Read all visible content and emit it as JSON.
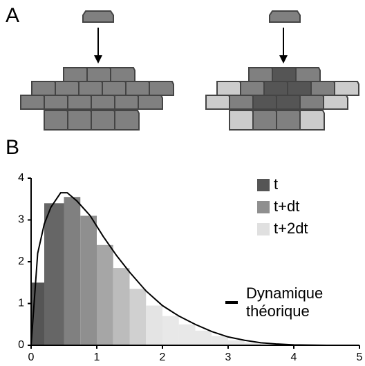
{
  "panels": {
    "a_label": "A",
    "b_label": "B"
  },
  "chart_data": {
    "type": "histogram",
    "bins": [
      0,
      0.2,
      0.5,
      0.75,
      1,
      1.25,
      1.5,
      1.75,
      2,
      2.25,
      2.5,
      2.75,
      3,
      3.25,
      3.5
    ],
    "counts": [
      1.5,
      3.4,
      3.55,
      3.1,
      2.4,
      1.85,
      1.35,
      0.95,
      0.7,
      0.5,
      0.35,
      0.22,
      0.12,
      0.06
    ],
    "bar_colors": [
      "#555555",
      "#666666",
      "#808080",
      "#8f8f8f",
      "#a6a6a6",
      "#bcbcbc",
      "#d0d0d0",
      "#e4e4e4",
      "#e8e8e8",
      "#e8e8e8",
      "#e8e8e8",
      "#e8e8e8",
      "#e8e8e8",
      "#e8e8e8"
    ],
    "legend": [
      {
        "name": "t",
        "color": "#555555"
      },
      {
        "name": "t+dt",
        "color": "#8f8f8f"
      },
      {
        "name": "t+2dt",
        "color": "#e0e0e0"
      }
    ],
    "line": {
      "name": "Dynamique théorique",
      "color": "#000000",
      "x": [
        0,
        0.1,
        0.2,
        0.3,
        0.45,
        0.55,
        0.7,
        0.9,
        1.1,
        1.3,
        1.5,
        1.75,
        2,
        2.25,
        2.5,
        2.75,
        3,
        3.25,
        3.5,
        3.75,
        4,
        4.5
      ],
      "y": [
        0,
        2.2,
        2.9,
        3.3,
        3.65,
        3.65,
        3.45,
        3.1,
        2.6,
        2.15,
        1.75,
        1.3,
        0.95,
        0.7,
        0.5,
        0.33,
        0.2,
        0.12,
        0.06,
        0.03,
        0.01,
        0
      ]
    },
    "xlim": [
      0,
      5
    ],
    "ylim": [
      0,
      4
    ],
    "xticks": [
      0,
      1,
      2,
      3,
      4,
      5
    ],
    "yticks": [
      0,
      1,
      2,
      3,
      4
    ]
  }
}
